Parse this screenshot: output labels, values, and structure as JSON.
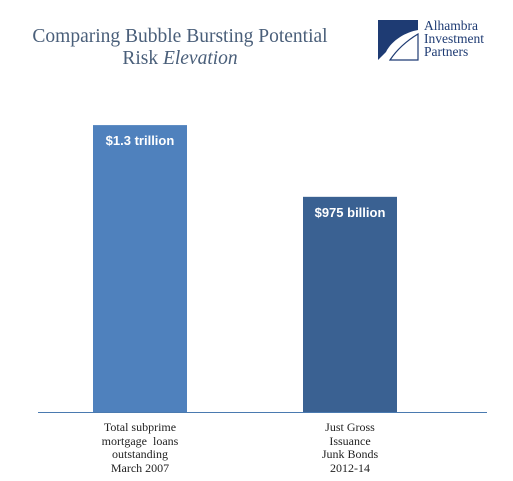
{
  "title": {
    "line1": "Comparing Bubble Bursting Potential",
    "line2_prefix": "Risk ",
    "line2_emphasis": "Elevation"
  },
  "logo": {
    "line1": "Alhambra",
    "line2": "Investment",
    "line3": "Partners",
    "icon": "alhambra-logo-icon"
  },
  "colors": {
    "title": "#4a5f7a",
    "logo": "#1e3b73",
    "bar1": "#4f81bd",
    "bar2": "#3a6192",
    "axis": "#4a7ab0"
  },
  "chart_data": {
    "type": "bar",
    "categories": [
      [
        "Total subprime",
        "mortgage  loans",
        "outstanding",
        "March 2007"
      ],
      [
        "Just Gross",
        "Issuance",
        "Junk Bonds",
        "2012-14"
      ]
    ],
    "values": [
      1300,
      975
    ],
    "value_unit": "billions of dollars",
    "data_labels": [
      "$1.3 trillion",
      "$975 billion"
    ],
    "ylim": [
      0,
      1450
    ],
    "grid": false,
    "legend": "none"
  }
}
